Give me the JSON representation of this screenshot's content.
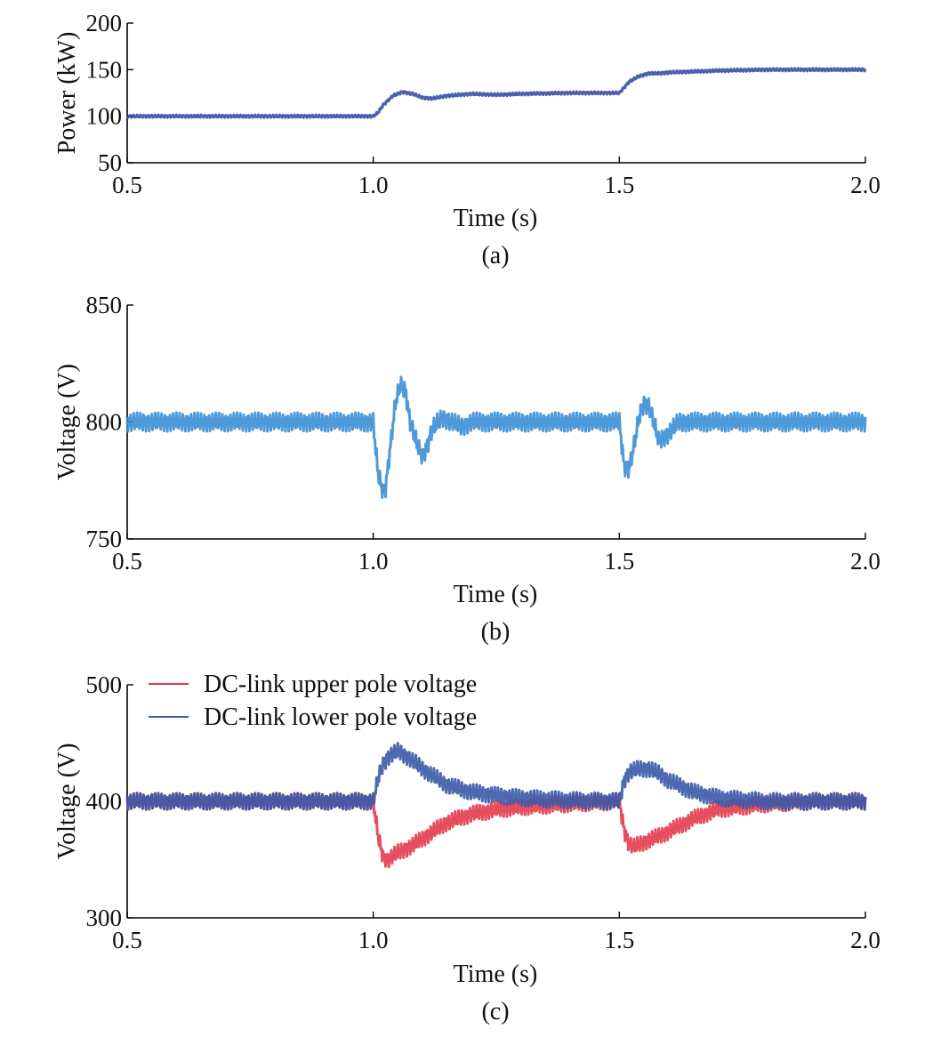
{
  "chart_data": [
    {
      "type": "line",
      "panel_label": "(a)",
      "xlabel": "Time (s)",
      "ylabel": "Power (kW)",
      "xlim": [
        0.5,
        2.0
      ],
      "ylim": [
        50,
        200
      ],
      "xticks": [
        0.5,
        1.0,
        1.5,
        2.0
      ],
      "xtick_labels": [
        "0.5",
        "1.0",
        "1.5",
        "2.0"
      ],
      "yticks": [
        50,
        100,
        150,
        200
      ],
      "ytick_labels": [
        "50",
        "100",
        "150",
        "200"
      ],
      "grid": false,
      "series": [
        {
          "color": "#3a4fa6",
          "band": 1.5,
          "x": [
            0.5,
            1.0,
            1.01,
            1.02,
            1.04,
            1.06,
            1.08,
            1.1,
            1.12,
            1.15,
            1.2,
            1.25,
            1.3,
            1.4,
            1.5,
            1.51,
            1.52,
            1.54,
            1.56,
            1.58,
            1.6,
            1.65,
            1.7,
            1.8,
            1.9,
            2.0
          ],
          "y": [
            100,
            100,
            104,
            112,
            122,
            126,
            124,
            120,
            119,
            122,
            124,
            123,
            124,
            125,
            125,
            131,
            137,
            143,
            146,
            146,
            147,
            148,
            149,
            150,
            150,
            150
          ]
        }
      ]
    },
    {
      "type": "line",
      "panel_label": "(b)",
      "xlabel": "Time (s)",
      "ylabel": "Voltage (V)",
      "xlim": [
        0.5,
        2.0
      ],
      "ylim": [
        750,
        850
      ],
      "xticks": [
        0.5,
        1.0,
        1.5,
        2.0
      ],
      "xtick_labels": [
        "0.5",
        "1.0",
        "1.5",
        "2.0"
      ],
      "yticks": [
        750,
        800,
        850
      ],
      "ytick_labels": [
        "750",
        "800",
        "850"
      ],
      "grid": false,
      "series": [
        {
          "color": "#3b8ed4",
          "band": 4,
          "x": [
            0.5,
            1.0,
            1.005,
            1.01,
            1.02,
            1.025,
            1.035,
            1.045,
            1.055,
            1.065,
            1.075,
            1.09,
            1.1,
            1.11,
            1.12,
            1.14,
            1.16,
            1.18,
            1.2,
            1.25,
            1.3,
            1.4,
            1.5,
            1.505,
            1.51,
            1.52,
            1.53,
            1.54,
            1.55,
            1.56,
            1.57,
            1.58,
            1.6,
            1.62,
            1.64,
            1.66,
            1.7,
            1.8,
            1.9,
            2.0
          ],
          "y": [
            800,
            800,
            788,
            778,
            770,
            772,
            790,
            808,
            816,
            814,
            800,
            790,
            785,
            790,
            797,
            802,
            800,
            798,
            800,
            800,
            800,
            800,
            800,
            790,
            781,
            780,
            790,
            802,
            808,
            807,
            800,
            792,
            795,
            800,
            800,
            800,
            800,
            800,
            800,
            800
          ]
        }
      ]
    },
    {
      "type": "line",
      "panel_label": "(c)",
      "xlabel": "Time (s)",
      "ylabel": "Voltage (V)",
      "xlim": [
        0.5,
        2.0
      ],
      "ylim": [
        300,
        500
      ],
      "xticks": [
        0.5,
        1.0,
        1.5,
        2.0
      ],
      "xtick_labels": [
        "0.5",
        "1.0",
        "1.5",
        "2.0"
      ],
      "yticks": [
        300,
        400,
        500
      ],
      "ytick_labels": [
        "300",
        "400",
        "500"
      ],
      "grid": false,
      "legend": "top-left",
      "series": [
        {
          "name": "DC-link upper pole voltage",
          "color": "#e33a4d",
          "band": 7,
          "x": [
            0.5,
            1.0,
            1.01,
            1.02,
            1.03,
            1.05,
            1.08,
            1.1,
            1.15,
            1.2,
            1.25,
            1.3,
            1.4,
            1.5,
            1.51,
            1.52,
            1.53,
            1.55,
            1.58,
            1.6,
            1.65,
            1.7,
            1.8,
            1.9,
            2.0
          ],
          "y": [
            400,
            400,
            370,
            352,
            350,
            356,
            362,
            368,
            382,
            389,
            393,
            395,
            398,
            400,
            375,
            363,
            361,
            365,
            370,
            374,
            385,
            393,
            398,
            400,
            400
          ]
        },
        {
          "name": "DC-link lower pole voltage",
          "color": "#3a5aa8",
          "band": 7,
          "x": [
            0.5,
            1.0,
            1.01,
            1.02,
            1.03,
            1.05,
            1.07,
            1.1,
            1.15,
            1.2,
            1.25,
            1.3,
            1.4,
            1.5,
            1.51,
            1.52,
            1.54,
            1.56,
            1.58,
            1.6,
            1.65,
            1.7,
            1.8,
            1.9,
            2.0
          ],
          "y": [
            400,
            400,
            420,
            432,
            438,
            443,
            438,
            428,
            414,
            408,
            405,
            403,
            401,
            400,
            418,
            425,
            428,
            428,
            424,
            418,
            408,
            403,
            400,
            400,
            400
          ]
        }
      ]
    }
  ]
}
